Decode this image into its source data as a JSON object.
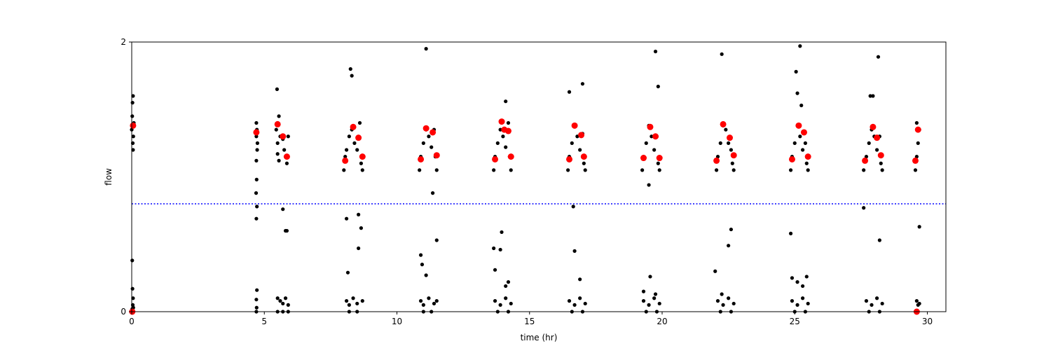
{
  "chart_data": {
    "type": "scatter",
    "title": "",
    "xlabel": "time (hr)",
    "ylabel": "flow",
    "xlim": [
      0,
      30.7
    ],
    "ylim": [
      0,
      2
    ],
    "x_ticks": [
      0,
      5,
      10,
      15,
      20,
      25,
      30
    ],
    "y_ticks": [
      0,
      2
    ],
    "grid": false,
    "threshold": {
      "y": 0.8,
      "style": "dotted",
      "color": "#0000ff"
    },
    "series": [
      {
        "role": "raw measurements",
        "color": "#000000",
        "points": [
          [
            0.0,
            1.35
          ],
          [
            0.02,
            1.45
          ],
          [
            0.03,
            1.55
          ],
          [
            0.05,
            1.6
          ],
          [
            0.04,
            1.25
          ],
          [
            0.06,
            1.3
          ],
          [
            0.08,
            1.4
          ],
          [
            0.05,
            1.2
          ],
          [
            0.02,
            0.38
          ],
          [
            0.03,
            0.17
          ],
          [
            0.05,
            0.1
          ],
          [
            0.04,
            0.05
          ],
          [
            0.02,
            0.02
          ],
          [
            0.01,
            0.0
          ],
          [
            0.06,
            0.03
          ],
          [
            4.7,
            1.3
          ],
          [
            4.72,
            1.35
          ],
          [
            4.74,
            1.25
          ],
          [
            4.7,
            1.4
          ],
          [
            4.73,
            1.2
          ],
          [
            4.7,
            1.12
          ],
          [
            4.71,
            0.98
          ],
          [
            4.69,
            0.88
          ],
          [
            4.72,
            0.78
          ],
          [
            4.7,
            0.69
          ],
          [
            4.72,
            0.16
          ],
          [
            4.7,
            0.09
          ],
          [
            4.71,
            0.03
          ],
          [
            4.7,
            0.0
          ],
          [
            5.45,
            1.35
          ],
          [
            5.5,
            1.4
          ],
          [
            5.55,
            1.45
          ],
          [
            5.6,
            1.3
          ],
          [
            5.5,
            1.25
          ],
          [
            5.48,
            1.65
          ],
          [
            5.7,
            1.28
          ],
          [
            5.75,
            1.2
          ],
          [
            5.8,
            1.15
          ],
          [
            5.85,
            1.1
          ],
          [
            5.9,
            1.3
          ],
          [
            5.7,
            0.76
          ],
          [
            5.8,
            0.6
          ],
          [
            5.85,
            0.6
          ],
          [
            5.5,
            1.17
          ],
          [
            5.55,
            1.12
          ],
          [
            5.5,
            0.1
          ],
          [
            5.6,
            0.08
          ],
          [
            5.7,
            0.06
          ],
          [
            5.8,
            0.1
          ],
          [
            5.9,
            0.05
          ],
          [
            5.5,
            0.0
          ],
          [
            5.7,
            0.0
          ],
          [
            5.9,
            0.0
          ],
          [
            8.0,
            1.05
          ],
          [
            8.05,
            1.15
          ],
          [
            8.1,
            1.2
          ],
          [
            8.2,
            1.3
          ],
          [
            8.3,
            1.35
          ],
          [
            8.4,
            1.25
          ],
          [
            8.5,
            1.2
          ],
          [
            8.6,
            1.4
          ],
          [
            8.65,
            1.1
          ],
          [
            8.7,
            1.05
          ],
          [
            8.25,
            1.8
          ],
          [
            8.3,
            1.75
          ],
          [
            8.15,
            0.29
          ],
          [
            8.1,
            0.69
          ],
          [
            8.55,
            0.72
          ],
          [
            8.65,
            0.62
          ],
          [
            8.55,
            0.47
          ],
          [
            8.1,
            0.08
          ],
          [
            8.2,
            0.05
          ],
          [
            8.35,
            0.1
          ],
          [
            8.5,
            0.06
          ],
          [
            8.7,
            0.08
          ],
          [
            8.2,
            0.0
          ],
          [
            8.5,
            0.0
          ],
          [
            10.85,
            1.05
          ],
          [
            10.9,
            1.15
          ],
          [
            11.0,
            1.25
          ],
          [
            11.1,
            1.35
          ],
          [
            11.2,
            1.3
          ],
          [
            11.3,
            1.22
          ],
          [
            11.4,
            1.35
          ],
          [
            11.45,
            1.15
          ],
          [
            11.5,
            1.05
          ],
          [
            11.1,
            1.95
          ],
          [
            10.9,
            0.42
          ],
          [
            10.95,
            0.35
          ],
          [
            11.1,
            0.27
          ],
          [
            11.35,
            0.88
          ],
          [
            11.5,
            0.53
          ],
          [
            10.9,
            0.08
          ],
          [
            11.0,
            0.05
          ],
          [
            11.2,
            0.1
          ],
          [
            11.4,
            0.06
          ],
          [
            11.5,
            0.08
          ],
          [
            11.0,
            0.0
          ],
          [
            11.3,
            0.0
          ],
          [
            13.65,
            1.05
          ],
          [
            13.7,
            1.15
          ],
          [
            13.8,
            1.25
          ],
          [
            13.9,
            1.35
          ],
          [
            14.0,
            1.3
          ],
          [
            14.1,
            1.22
          ],
          [
            14.2,
            1.4
          ],
          [
            14.25,
            1.15
          ],
          [
            14.3,
            1.05
          ],
          [
            14.1,
            1.56
          ],
          [
            13.65,
            0.47
          ],
          [
            13.7,
            0.31
          ],
          [
            13.9,
            0.46
          ],
          [
            13.95,
            0.59
          ],
          [
            14.1,
            0.19
          ],
          [
            14.2,
            0.22
          ],
          [
            13.7,
            0.08
          ],
          [
            13.9,
            0.05
          ],
          [
            14.1,
            0.1
          ],
          [
            14.3,
            0.06
          ],
          [
            13.8,
            0.0
          ],
          [
            14.2,
            0.0
          ],
          [
            16.45,
            1.05
          ],
          [
            16.5,
            1.15
          ],
          [
            16.6,
            1.25
          ],
          [
            16.7,
            1.38
          ],
          [
            16.8,
            1.3
          ],
          [
            16.9,
            1.2
          ],
          [
            17.0,
            1.32
          ],
          [
            17.05,
            1.1
          ],
          [
            17.1,
            1.05
          ],
          [
            16.5,
            1.63
          ],
          [
            17.0,
            1.69
          ],
          [
            16.65,
            0.78
          ],
          [
            16.7,
            0.45
          ],
          [
            16.9,
            0.24
          ],
          [
            16.5,
            0.08
          ],
          [
            16.7,
            0.05
          ],
          [
            16.9,
            0.1
          ],
          [
            17.1,
            0.06
          ],
          [
            16.6,
            0.0
          ],
          [
            17.0,
            0.0
          ],
          [
            19.25,
            1.05
          ],
          [
            19.3,
            1.15
          ],
          [
            19.4,
            1.25
          ],
          [
            19.5,
            1.38
          ],
          [
            19.6,
            1.3
          ],
          [
            19.7,
            1.2
          ],
          [
            19.8,
            1.3
          ],
          [
            19.85,
            1.1
          ],
          [
            19.9,
            1.05
          ],
          [
            19.75,
            1.93
          ],
          [
            19.85,
            1.67
          ],
          [
            19.5,
            0.94
          ],
          [
            19.3,
            0.15
          ],
          [
            19.55,
            0.26
          ],
          [
            19.75,
            0.13
          ],
          [
            19.3,
            0.08
          ],
          [
            19.5,
            0.05
          ],
          [
            19.7,
            0.1
          ],
          [
            19.9,
            0.06
          ],
          [
            19.4,
            0.0
          ],
          [
            19.8,
            0.0
          ],
          [
            22.05,
            1.05
          ],
          [
            22.1,
            1.15
          ],
          [
            22.2,
            1.25
          ],
          [
            22.3,
            1.38
          ],
          [
            22.4,
            1.35
          ],
          [
            22.5,
            1.25
          ],
          [
            22.6,
            1.2
          ],
          [
            22.65,
            1.1
          ],
          [
            22.7,
            1.05
          ],
          [
            22.25,
            1.91
          ],
          [
            22.0,
            0.3
          ],
          [
            22.5,
            0.49
          ],
          [
            22.6,
            0.61
          ],
          [
            22.25,
            0.13
          ],
          [
            22.1,
            0.08
          ],
          [
            22.3,
            0.05
          ],
          [
            22.5,
            0.1
          ],
          [
            22.7,
            0.06
          ],
          [
            22.2,
            0.0
          ],
          [
            22.6,
            0.0
          ],
          [
            24.85,
            1.05
          ],
          [
            24.9,
            1.15
          ],
          [
            25.0,
            1.25
          ],
          [
            25.1,
            1.38
          ],
          [
            25.2,
            1.3
          ],
          [
            25.3,
            1.2
          ],
          [
            25.4,
            1.25
          ],
          [
            25.45,
            1.1
          ],
          [
            25.5,
            1.05
          ],
          [
            25.2,
            1.97
          ],
          [
            25.05,
            1.78
          ],
          [
            25.1,
            1.62
          ],
          [
            25.25,
            1.53
          ],
          [
            24.85,
            0.58
          ],
          [
            24.9,
            0.25
          ],
          [
            25.1,
            0.22
          ],
          [
            25.3,
            0.19
          ],
          [
            25.45,
            0.26
          ],
          [
            24.9,
            0.08
          ],
          [
            25.1,
            0.05
          ],
          [
            25.3,
            0.1
          ],
          [
            25.5,
            0.06
          ],
          [
            25.0,
            0.0
          ],
          [
            25.4,
            0.0
          ],
          [
            27.6,
            1.05
          ],
          [
            27.7,
            1.15
          ],
          [
            27.8,
            1.25
          ],
          [
            27.9,
            1.35
          ],
          [
            28.0,
            1.3
          ],
          [
            28.1,
            1.2
          ],
          [
            28.2,
            1.3
          ],
          [
            28.25,
            1.1
          ],
          [
            28.3,
            1.05
          ],
          [
            28.15,
            1.89
          ],
          [
            27.85,
            1.6
          ],
          [
            27.95,
            1.6
          ],
          [
            27.6,
            0.77
          ],
          [
            28.2,
            0.53
          ],
          [
            27.7,
            0.08
          ],
          [
            27.9,
            0.05
          ],
          [
            28.1,
            0.1
          ],
          [
            28.3,
            0.06
          ],
          [
            27.8,
            0.0
          ],
          [
            28.2,
            0.0
          ],
          [
            29.55,
            1.05
          ],
          [
            29.6,
            1.15
          ],
          [
            29.65,
            1.25
          ],
          [
            29.7,
            1.35
          ],
          [
            29.6,
            1.4
          ],
          [
            29.7,
            0.63
          ],
          [
            29.6,
            0.08
          ],
          [
            29.65,
            0.05
          ],
          [
            29.7,
            0.06
          ],
          [
            29.6,
            0.0
          ]
        ]
      },
      {
        "role": "medians",
        "color": "#ff0000",
        "points": [
          [
            0.05,
            1.38
          ],
          [
            0.02,
            0.0
          ],
          [
            4.7,
            1.33
          ],
          [
            5.5,
            1.39
          ],
          [
            5.7,
            1.3
          ],
          [
            5.85,
            1.15
          ],
          [
            8.05,
            1.12
          ],
          [
            8.35,
            1.37
          ],
          [
            8.55,
            1.29
          ],
          [
            8.7,
            1.15
          ],
          [
            10.9,
            1.13
          ],
          [
            11.1,
            1.36
          ],
          [
            11.35,
            1.33
          ],
          [
            11.5,
            1.16
          ],
          [
            13.7,
            1.13
          ],
          [
            13.95,
            1.41
          ],
          [
            14.05,
            1.35
          ],
          [
            14.2,
            1.34
          ],
          [
            14.3,
            1.15
          ],
          [
            16.5,
            1.13
          ],
          [
            16.7,
            1.38
          ],
          [
            16.95,
            1.31
          ],
          [
            17.05,
            1.15
          ],
          [
            19.3,
            1.14
          ],
          [
            19.55,
            1.37
          ],
          [
            19.75,
            1.3
          ],
          [
            19.9,
            1.14
          ],
          [
            22.05,
            1.12
          ],
          [
            22.3,
            1.39
          ],
          [
            22.55,
            1.29
          ],
          [
            22.7,
            1.16
          ],
          [
            24.9,
            1.13
          ],
          [
            25.15,
            1.38
          ],
          [
            25.35,
            1.33
          ],
          [
            25.5,
            1.15
          ],
          [
            27.65,
            1.12
          ],
          [
            27.95,
            1.37
          ],
          [
            28.1,
            1.29
          ],
          [
            28.25,
            1.16
          ],
          [
            29.55,
            1.12
          ],
          [
            29.65,
            1.35
          ],
          [
            29.6,
            0.0
          ]
        ]
      }
    ]
  }
}
